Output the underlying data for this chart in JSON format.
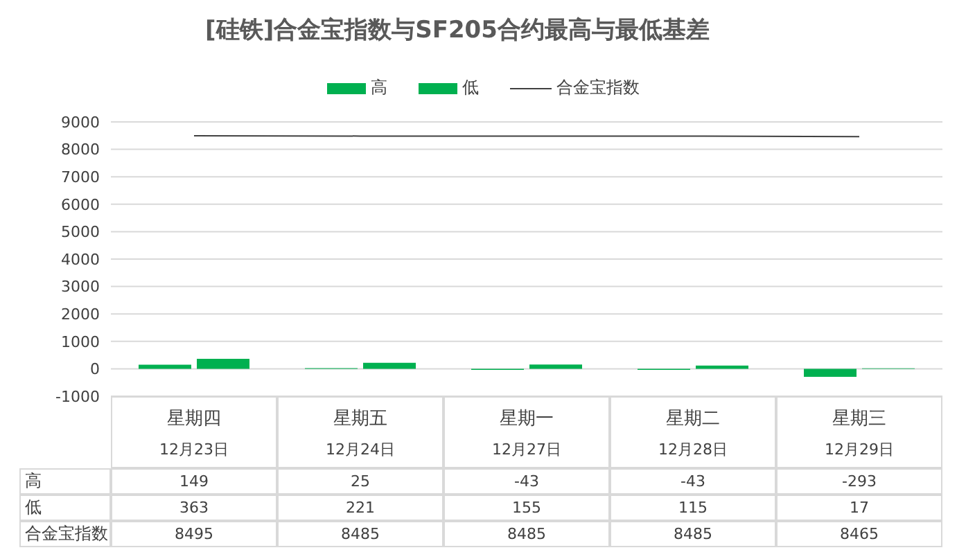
{
  "chart_data": {
    "type": "bar",
    "title": "[硅铁]合金宝指数与SF205合约最高与最低基差",
    "categories": [
      "星期四\n12月23日",
      "星期五\n12月24日",
      "星期一\n12月27日",
      "星期二\n12月28日",
      "星期三\n12月29日"
    ],
    "series": [
      {
        "name": "高",
        "color": "#00b050",
        "values": [
          149,
          25,
          -43,
          -43,
          -293
        ]
      },
      {
        "name": "低",
        "color": "#00b050",
        "values": [
          363,
          221,
          155,
          115,
          17
        ]
      },
      {
        "name": "合金宝指数",
        "type": "line",
        "color": "#404040",
        "values": [
          8495,
          8485,
          8485,
          8485,
          8465
        ]
      }
    ],
    "ylim": [
      -1000,
      9000
    ],
    "yticks": [
      -1000,
      0,
      1000,
      2000,
      3000,
      4000,
      5000,
      6000,
      7000,
      8000,
      9000
    ],
    "grid": "y",
    "legend": "top",
    "marker": "none",
    "data_labels": true
  }
}
